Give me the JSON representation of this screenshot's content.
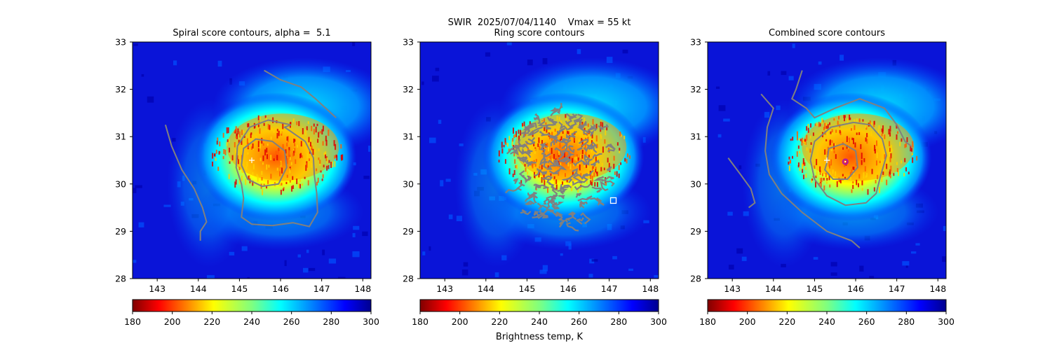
{
  "figure": {
    "suptitle": "SWIR  2025/07/04/1140    Vmax = 55 kt",
    "colorbar_label": "Brightness temp, K"
  },
  "chart_data": [
    {
      "type": "heatmap",
      "title": "Spiral score contours, alpha =  5.1",
      "xlim": [
        142.4,
        148.2
      ],
      "ylim": [
        28,
        33
      ],
      "xticks": [
        143,
        144,
        145,
        146,
        147,
        148
      ],
      "yticks": [
        28,
        29,
        30,
        31,
        32,
        33
      ],
      "colormap": "jet_r",
      "clim": [
        180,
        300
      ],
      "colorbar_ticks": [
        180,
        200,
        220,
        240,
        260,
        280,
        300
      ],
      "storm_center": {
        "lon": 145.8,
        "lat": 30.6
      },
      "markers": [
        {
          "shape": "plus",
          "lon": 145.3,
          "lat": 30.5,
          "color": "#ffffff"
        }
      ],
      "contours": [
        {
          "level": "inner",
          "color": "#808080",
          "points": [
            [
              145.05,
              30.4
            ],
            [
              145.1,
              30.75
            ],
            [
              145.4,
              30.95
            ],
            [
              145.8,
              30.9
            ],
            [
              146.1,
              30.7
            ],
            [
              146.15,
              30.35
            ],
            [
              145.95,
              30.0
            ],
            [
              145.55,
              29.95
            ],
            [
              145.2,
              30.1
            ],
            [
              145.05,
              30.4
            ]
          ]
        },
        {
          "level": "outer",
          "color": "#808080",
          "points": [
            [
              146.25,
              31.25
            ],
            [
              145.7,
              31.35
            ],
            [
              145.25,
              31.2
            ],
            [
              144.95,
              30.8
            ],
            [
              144.92,
              30.35
            ],
            [
              145.05,
              30.0
            ],
            [
              145.1,
              29.7
            ],
            [
              145.05,
              29.3
            ],
            [
              145.3,
              29.15
            ],
            [
              145.8,
              29.12
            ],
            [
              146.3,
              29.18
            ],
            [
              146.7,
              29.1
            ],
            [
              146.9,
              29.4
            ],
            [
              146.88,
              29.8
            ],
            [
              146.82,
              30.2
            ],
            [
              146.8,
              30.55
            ],
            [
              146.6,
              30.9
            ],
            [
              146.1,
              31.2
            ],
            [
              146.25,
              31.25
            ]
          ]
        },
        {
          "level": "band-ne",
          "color": "#808080",
          "points": [
            [
              145.6,
              32.4
            ],
            [
              146.0,
              32.2
            ],
            [
              146.5,
              32.05
            ],
            [
              146.85,
              31.8
            ],
            [
              147.1,
              31.6
            ],
            [
              147.35,
              31.4
            ]
          ]
        },
        {
          "level": "band-w",
          "color": "#808080",
          "points": [
            [
              143.2,
              31.25
            ],
            [
              143.35,
              30.8
            ],
            [
              143.6,
              30.3
            ],
            [
              143.9,
              29.9
            ],
            [
              144.1,
              29.5
            ],
            [
              144.2,
              29.2
            ],
            [
              144.05,
              29.0
            ],
            [
              144.05,
              28.8
            ]
          ]
        }
      ]
    },
    {
      "type": "heatmap",
      "title": "Ring score contours",
      "xlim": [
        142.4,
        148.2
      ],
      "ylim": [
        28,
        33
      ],
      "xticks": [
        143,
        144,
        145,
        146,
        147,
        148
      ],
      "yticks": [
        28,
        29,
        30,
        31,
        32,
        33
      ],
      "colormap": "jet_r",
      "clim": [
        180,
        300
      ],
      "colorbar_ticks": [
        180,
        200,
        220,
        240,
        260,
        280,
        300
      ],
      "storm_center": {
        "lon": 145.8,
        "lat": 30.6
      },
      "markers": [
        {
          "shape": "square",
          "lon": 147.1,
          "lat": 29.65,
          "color": "#ffffff"
        }
      ],
      "ring_region": {
        "center": [
          145.8,
          30.25
        ],
        "radius_deg": [
          1.2,
          1.65
        ],
        "color": "#808080"
      }
    },
    {
      "type": "heatmap",
      "title": "Combined score contours",
      "xlim": [
        142.4,
        148.2
      ],
      "ylim": [
        28,
        33
      ],
      "xticks": [
        143,
        144,
        145,
        146,
        147,
        148
      ],
      "yticks": [
        28,
        29,
        30,
        31,
        32,
        33
      ],
      "colormap": "jet_r",
      "clim": [
        180,
        300
      ],
      "colorbar_ticks": [
        180,
        200,
        220,
        240,
        260,
        280,
        300
      ],
      "storm_center": {
        "lon": 145.8,
        "lat": 30.6
      },
      "markers": [
        {
          "shape": "plus",
          "lon": 145.3,
          "lat": 30.5,
          "color": "#ffffff"
        },
        {
          "shape": "ring",
          "lon": 145.75,
          "lat": 30.47,
          "color": "#b5179e"
        }
      ],
      "contours": [
        {
          "level": "inner",
          "color": "#808080",
          "points": [
            [
              145.3,
              30.45
            ],
            [
              145.35,
              30.75
            ],
            [
              145.7,
              30.85
            ],
            [
              146.0,
              30.7
            ],
            [
              146.05,
              30.35
            ],
            [
              145.8,
              30.1
            ],
            [
              145.45,
              30.1
            ],
            [
              145.25,
              30.3
            ],
            [
              145.3,
              30.45
            ]
          ]
        },
        {
          "level": "outer",
          "color": "#808080",
          "points": [
            [
              145.95,
              31.3
            ],
            [
              145.4,
              31.2
            ],
            [
              145.0,
              30.9
            ],
            [
              144.9,
              30.5
            ],
            [
              145.0,
              30.1
            ],
            [
              145.3,
              29.75
            ],
            [
              145.75,
              29.55
            ],
            [
              146.25,
              29.6
            ],
            [
              146.5,
              29.8
            ],
            [
              146.6,
              30.15
            ],
            [
              146.75,
              30.6
            ],
            [
              146.65,
              30.95
            ],
            [
              146.35,
              31.25
            ],
            [
              145.95,
              31.3
            ]
          ]
        },
        {
          "level": "band-n",
          "color": "#808080",
          "points": [
            [
              144.7,
              32.4
            ],
            [
              144.55,
              32.0
            ],
            [
              144.45,
              31.8
            ],
            [
              144.8,
              31.6
            ],
            [
              145.0,
              31.4
            ],
            [
              145.5,
              31.6
            ],
            [
              146.1,
              31.8
            ],
            [
              146.7,
              31.6
            ],
            [
              147.0,
              31.25
            ],
            [
              147.2,
              30.9
            ],
            [
              147.35,
              30.8
            ]
          ]
        },
        {
          "level": "band-w",
          "color": "#808080",
          "points": [
            [
              143.7,
              31.9
            ],
            [
              144.0,
              31.6
            ],
            [
              143.85,
              31.2
            ],
            [
              143.8,
              30.7
            ],
            [
              143.9,
              30.2
            ],
            [
              144.2,
              29.8
            ],
            [
              144.7,
              29.4
            ],
            [
              145.3,
              29.0
            ],
            [
              145.9,
              28.8
            ],
            [
              146.1,
              28.65
            ]
          ]
        },
        {
          "level": "band-sw",
          "color": "#808080",
          "points": [
            [
              142.9,
              30.55
            ],
            [
              143.2,
              30.2
            ],
            [
              143.45,
              29.9
            ],
            [
              143.55,
              29.6
            ],
            [
              143.4,
              29.5
            ]
          ]
        }
      ]
    }
  ]
}
